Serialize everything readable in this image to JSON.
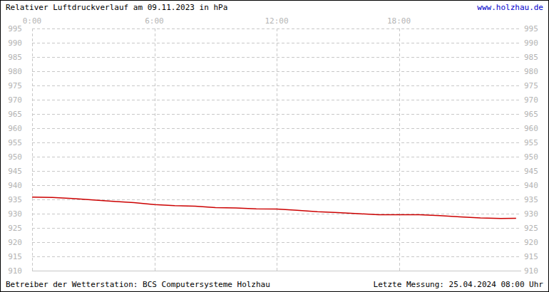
{
  "chart_data": {
    "type": "line",
    "title": "Relativer Luftdruckverlauf am 09.11.2023 in hPa",
    "source": "www.holzhau.de",
    "footer_left": "Betreiber der Wetterstation: BCS Computersysteme Holzhau",
    "footer_right": "Letzte Messung: 25.04.2024 08:00 Uhr",
    "x": [
      0,
      1,
      2,
      3,
      4,
      5,
      6,
      7,
      8,
      9,
      10,
      11,
      12,
      13,
      14,
      15,
      16,
      17,
      18,
      19,
      20,
      21,
      22,
      23,
      23.75
    ],
    "values": [
      935.8,
      935.7,
      935.3,
      934.8,
      934.3,
      933.9,
      933.2,
      932.8,
      932.6,
      932.1,
      932.0,
      931.7,
      931.6,
      931.2,
      930.7,
      930.4,
      930.0,
      929.6,
      929.6,
      929.6,
      929.3,
      928.9,
      928.5,
      928.3,
      928.4
    ],
    "color": "#cc0000",
    "xlim": [
      0,
      24
    ],
    "xticks": [
      {
        "value": 0,
        "label": "0:00"
      },
      {
        "value": 6,
        "label": "6:00"
      },
      {
        "value": 12,
        "label": "12:00"
      },
      {
        "value": 18,
        "label": "18:00"
      }
    ],
    "ylim": [
      910,
      995
    ],
    "yticks": [
      910,
      915,
      920,
      925,
      930,
      935,
      940,
      945,
      950,
      955,
      960,
      965,
      970,
      975,
      980,
      985,
      990,
      995
    ],
    "grid": true
  }
}
